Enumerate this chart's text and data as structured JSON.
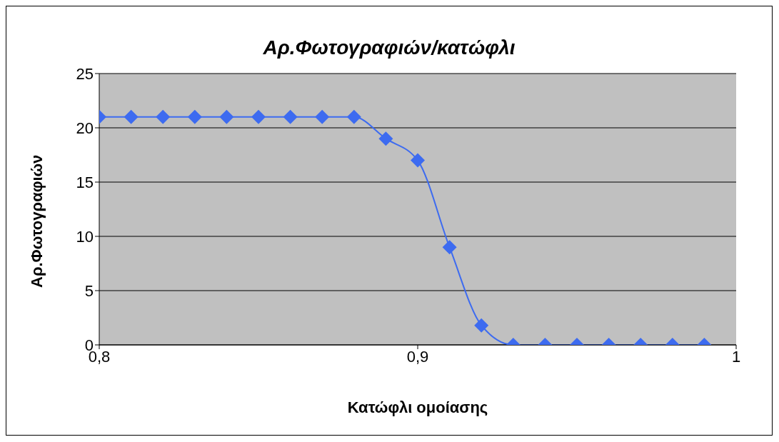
{
  "chart_data": {
    "type": "line",
    "title": "Αρ.Φωτογραφιών/κατώφλι",
    "xlabel": "Κατώφλι ομοίασης",
    "ylabel": "Αρ.Φωτογραφιών",
    "x": [
      0.8,
      0.81,
      0.82,
      0.83,
      0.84,
      0.85,
      0.86,
      0.87,
      0.88,
      0.89,
      0.9,
      0.91,
      0.92,
      0.93,
      0.94,
      0.95,
      0.96,
      0.97,
      0.98,
      0.99
    ],
    "series": [
      {
        "color": "#3d6bf0",
        "values": [
          21,
          21,
          21,
          21,
          21,
          21,
          21,
          21,
          21,
          19,
          17,
          9,
          1.8,
          0,
          0,
          0,
          0,
          0,
          0,
          0
        ]
      }
    ],
    "xlim": [
      0.8,
      1
    ],
    "xticks": [
      {
        "value": 0.8,
        "label": "0,8"
      },
      {
        "value": 0.9,
        "label": "0,9"
      },
      {
        "value": 1,
        "label": "1"
      }
    ],
    "ylim": [
      0,
      25
    ],
    "yticks": [
      0,
      5,
      10,
      15,
      20,
      25
    ],
    "grid": "y",
    "marker": "diamond",
    "line_style": "solid",
    "legend": false
  }
}
